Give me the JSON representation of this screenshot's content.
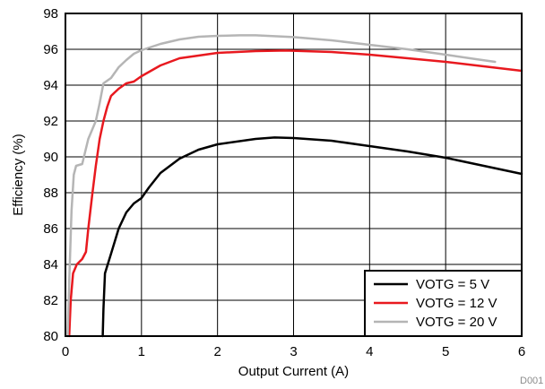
{
  "chart_data": {
    "type": "line",
    "title": "",
    "xlabel": "Output Current (A)",
    "ylabel": "Efficiency (%)",
    "xlim": [
      0,
      6
    ],
    "ylim": [
      80,
      98
    ],
    "xticks": [
      "0",
      "1",
      "2",
      "3",
      "4",
      "5",
      "6"
    ],
    "yticks": [
      "80",
      "82",
      "84",
      "86",
      "88",
      "90",
      "92",
      "94",
      "96",
      "98"
    ],
    "grid": true,
    "legend_position": "bottom-right",
    "figure_tag": "D001",
    "series": [
      {
        "name": "VOTG = 5 V",
        "color": "#000000",
        "points": [
          [
            0.49,
            80.0
          ],
          [
            0.5,
            81.5
          ],
          [
            0.52,
            83.5
          ],
          [
            0.6,
            84.6
          ],
          [
            0.7,
            86.0
          ],
          [
            0.8,
            86.9
          ],
          [
            0.9,
            87.4
          ],
          [
            1.0,
            87.7
          ],
          [
            1.1,
            88.3
          ],
          [
            1.25,
            89.1
          ],
          [
            1.5,
            89.9
          ],
          [
            1.75,
            90.4
          ],
          [
            2.0,
            90.7
          ],
          [
            2.5,
            91.0
          ],
          [
            2.75,
            91.08
          ],
          [
            3.0,
            91.05
          ],
          [
            3.5,
            90.9
          ],
          [
            4.0,
            90.6
          ],
          [
            4.5,
            90.3
          ],
          [
            5.0,
            89.95
          ],
          [
            5.5,
            89.5
          ],
          [
            6.0,
            89.05
          ]
        ]
      },
      {
        "name": "VOTG = 12 V",
        "color": "#e8191f",
        "points": [
          [
            0.05,
            80.0
          ],
          [
            0.07,
            82.0
          ],
          [
            0.1,
            83.5
          ],
          [
            0.15,
            84.0
          ],
          [
            0.22,
            84.3
          ],
          [
            0.27,
            84.7
          ],
          [
            0.3,
            86.0
          ],
          [
            0.35,
            87.8
          ],
          [
            0.4,
            89.5
          ],
          [
            0.45,
            91.0
          ],
          [
            0.5,
            92.0
          ],
          [
            0.55,
            92.8
          ],
          [
            0.6,
            93.4
          ],
          [
            0.7,
            93.8
          ],
          [
            0.8,
            94.1
          ],
          [
            0.9,
            94.2
          ],
          [
            1.0,
            94.5
          ],
          [
            1.25,
            95.1
          ],
          [
            1.5,
            95.5
          ],
          [
            2.0,
            95.8
          ],
          [
            2.5,
            95.9
          ],
          [
            2.9,
            95.93
          ],
          [
            3.5,
            95.85
          ],
          [
            4.0,
            95.7
          ],
          [
            4.5,
            95.5
          ],
          [
            5.0,
            95.3
          ],
          [
            5.5,
            95.05
          ],
          [
            6.0,
            94.8
          ]
        ]
      },
      {
        "name": "VOTG = 20 V",
        "color": "#b5b5b5",
        "points": [
          [
            0.03,
            80.0
          ],
          [
            0.05,
            83.0
          ],
          [
            0.08,
            87.0
          ],
          [
            0.11,
            89.0
          ],
          [
            0.14,
            89.5
          ],
          [
            0.22,
            89.6
          ],
          [
            0.3,
            91.0
          ],
          [
            0.35,
            91.5
          ],
          [
            0.4,
            92.0
          ],
          [
            0.45,
            93.0
          ],
          [
            0.5,
            94.1
          ],
          [
            0.6,
            94.4
          ],
          [
            0.7,
            95.0
          ],
          [
            0.8,
            95.4
          ],
          [
            0.9,
            95.75
          ],
          [
            1.0,
            95.95
          ],
          [
            1.25,
            96.3
          ],
          [
            1.5,
            96.55
          ],
          [
            1.75,
            96.7
          ],
          [
            2.0,
            96.75
          ],
          [
            2.3,
            96.78
          ],
          [
            2.5,
            96.78
          ],
          [
            3.0,
            96.68
          ],
          [
            3.5,
            96.5
          ],
          [
            4.0,
            96.25
          ],
          [
            4.5,
            96.0
          ],
          [
            5.0,
            95.7
          ],
          [
            5.4,
            95.45
          ],
          [
            5.65,
            95.3
          ]
        ]
      }
    ]
  }
}
